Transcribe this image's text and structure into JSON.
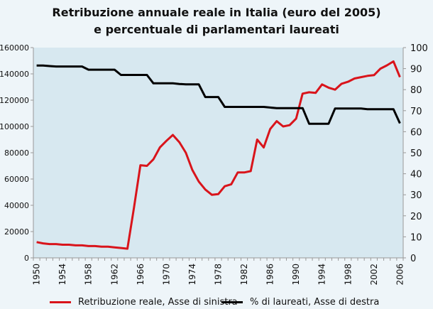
{
  "chart_data": {
    "type": "line",
    "title": "Retribuzione annuale reale in Italia (euro del 2005)",
    "subtitle": "e percentuale di parlamentari laureati",
    "x": [
      1950,
      1951,
      1952,
      1953,
      1954,
      1955,
      1956,
      1957,
      1958,
      1959,
      1960,
      1961,
      1962,
      1963,
      1964,
      1965,
      1966,
      1967,
      1968,
      1969,
      1970,
      1971,
      1972,
      1973,
      1974,
      1975,
      1976,
      1977,
      1978,
      1979,
      1980,
      1981,
      1982,
      1983,
      1984,
      1985,
      1986,
      1987,
      1988,
      1989,
      1990,
      1991,
      1992,
      1993,
      1994,
      1995,
      1996,
      1997,
      1998,
      1999,
      2000,
      2001,
      2002,
      2003,
      2004,
      2005,
      2006
    ],
    "x_tick_labels": [
      "1950",
      "1954",
      "1958",
      "1962",
      "1966",
      "1970",
      "1974",
      "1978",
      "1982",
      "1986",
      "1990",
      "1994",
      "1998",
      "2002",
      "2006"
    ],
    "left_axis": {
      "ylim": [
        0,
        160000
      ],
      "ticks": [
        "0",
        "20000",
        "40000",
        "60000",
        "80000",
        "100000",
        "120000",
        "140000",
        "160000"
      ]
    },
    "right_axis": {
      "ylim": [
        0,
        100
      ],
      "ticks": [
        "0",
        "10",
        "20",
        "30",
        "40",
        "50",
        "60",
        "70",
        "80",
        "90",
        "100"
      ]
    },
    "grid": false,
    "legend_placement": "bottom",
    "colors": {
      "plot_bg": "#d7e8f0",
      "page_bg": "#eef5f9",
      "red": "#d9141b",
      "black": "#000000"
    },
    "series": [
      {
        "name": "Retribuzione reale, Asse di sinistra",
        "axis": "left",
        "color": "#d9141b",
        "values": [
          12000,
          11000,
          10500,
          10500,
          10000,
          10000,
          9500,
          9500,
          9000,
          9000,
          8500,
          8500,
          8000,
          7500,
          7000,
          38000,
          70500,
          70000,
          75000,
          84000,
          89000,
          93500,
          88000,
          80000,
          67000,
          58000,
          52000,
          48000,
          48500,
          54500,
          56000,
          65000,
          65000,
          66000,
          90000,
          84000,
          98000,
          104000,
          100000,
          101000,
          106000,
          125000,
          126000,
          125500,
          132000,
          129500,
          128000,
          132500,
          134000,
          136500,
          137500,
          138500,
          139000,
          144000,
          146500,
          149500,
          137500
        ]
      },
      {
        "name": "% di laureati, Asse di destra",
        "axis": "right",
        "color": "#000000",
        "values": [
          91.5,
          91.5,
          91.2,
          91,
          91,
          91,
          91,
          91,
          89.5,
          89.5,
          89.5,
          89.5,
          89.5,
          87,
          87,
          87,
          87,
          87,
          83,
          83,
          83,
          83,
          82.7,
          82.5,
          82.5,
          82.5,
          76.5,
          76.5,
          76.5,
          71.8,
          71.8,
          71.8,
          71.8,
          71.8,
          71.8,
          71.8,
          71.5,
          71.2,
          71.2,
          71.2,
          71.2,
          71.2,
          63.8,
          63.8,
          63.8,
          63.8,
          71,
          71,
          71,
          71,
          71,
          70.7,
          70.7,
          70.7,
          70.7,
          70.7,
          64
        ]
      }
    ]
  }
}
